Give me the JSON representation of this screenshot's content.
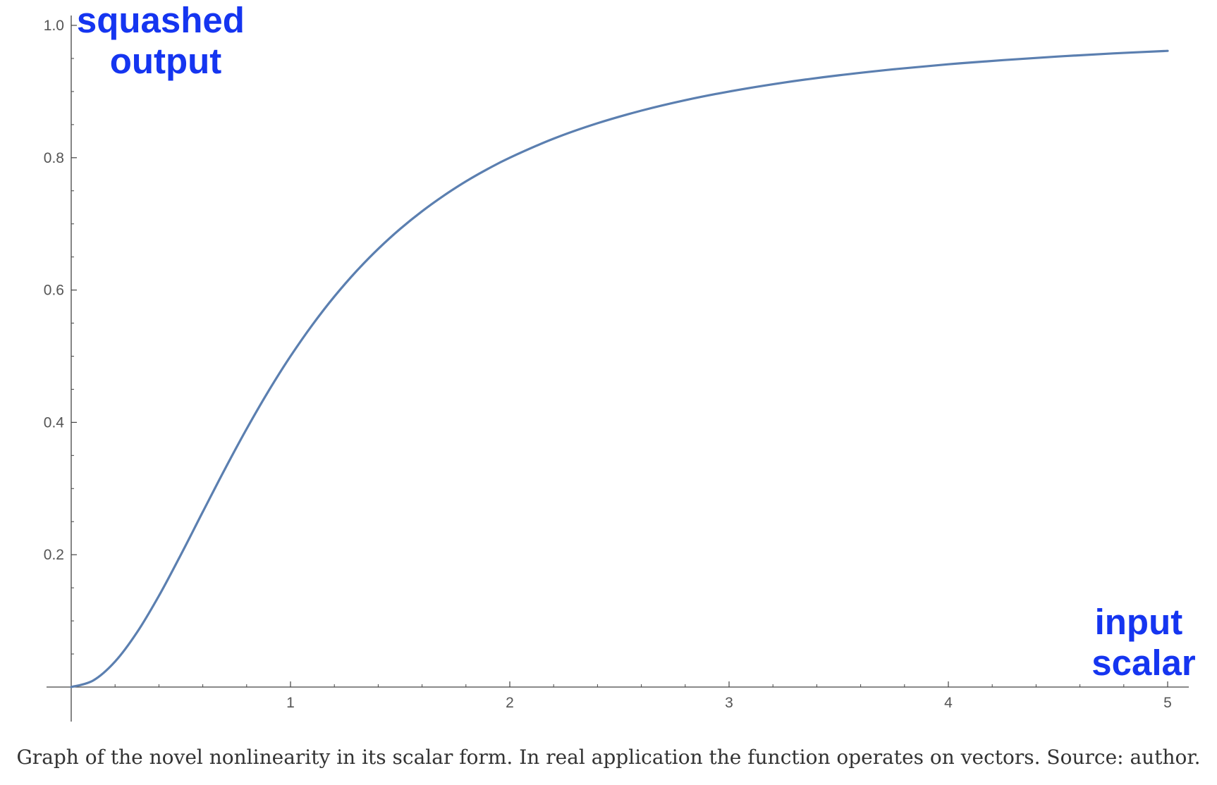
{
  "chart_data": {
    "type": "line",
    "title": "",
    "xlabel": "input scalar",
    "ylabel": "squashed output",
    "xlabel_lines": [
      "input",
      "scalar"
    ],
    "ylabel_lines": [
      "squashed",
      "output"
    ],
    "xlim": [
      0,
      5
    ],
    "ylim": [
      0,
      1
    ],
    "x_ticks": [
      1,
      2,
      3,
      4,
      5
    ],
    "y_ticks": [
      0.2,
      0.4,
      0.6,
      0.8,
      1.0
    ],
    "x_tick_labels": [
      "1",
      "2",
      "3",
      "4",
      "5"
    ],
    "y_tick_labels": [
      "0.2",
      "0.4",
      "0.6",
      "0.8",
      "1.0"
    ],
    "grid": false,
    "series": [
      {
        "x": [
          0,
          0.1,
          0.2,
          0.3,
          0.4,
          0.5,
          0.6,
          0.7,
          0.8,
          0.9,
          1.0,
          1.1,
          1.2,
          1.3,
          1.4,
          1.5,
          1.6,
          1.7,
          1.8,
          1.9,
          2.0,
          2.2,
          2.4,
          2.6,
          2.8,
          3.0,
          3.25,
          3.5,
          3.75,
          4.0,
          4.25,
          4.5,
          4.75,
          5.0
        ],
        "y": [
          0,
          0.0099,
          0.0385,
          0.0826,
          0.1379,
          0.2,
          0.2647,
          0.3289,
          0.3902,
          0.4475,
          0.5,
          0.5475,
          0.5902,
          0.6283,
          0.6622,
          0.6923,
          0.7191,
          0.7429,
          0.7642,
          0.7831,
          0.8,
          0.8288,
          0.8521,
          0.8711,
          0.8869,
          0.9,
          0.9135,
          0.9245,
          0.9336,
          0.9412,
          0.9475,
          0.9529,
          0.9576,
          0.9615
        ]
      }
    ],
    "colors": {
      "line": "#5b7fb0",
      "axis_label": "#1535f0",
      "axis": "#444444",
      "tick_text": "#555555"
    }
  },
  "caption": "Graph of the novel nonlinearity in its scalar form. In real application the function operates on vectors. Source: author."
}
